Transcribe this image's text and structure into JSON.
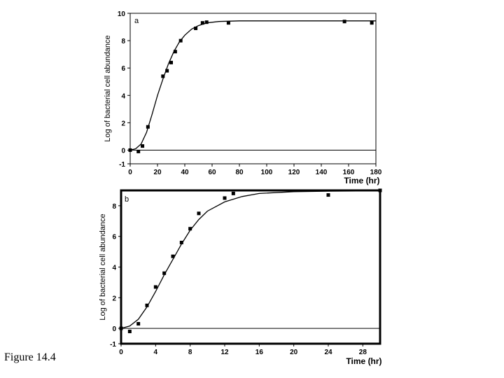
{
  "caption": "Figure 14.4",
  "chart_data": [
    {
      "type": "scatter",
      "panel_label": "a",
      "xlabel": "Time (hr)",
      "ylabel": "Log of bacterial cell abundance",
      "xlim": [
        0,
        180
      ],
      "ylim": [
        -1,
        10
      ],
      "xticks": [
        "0",
        "20",
        "40",
        "60",
        "80",
        "100",
        "120",
        "140",
        "160",
        "180"
      ],
      "yticks": [
        "-1",
        "0",
        "2",
        "4",
        "6",
        "8",
        "10"
      ],
      "series": [
        {
          "x": [
            0,
            6,
            9,
            13,
            24,
            27,
            30,
            33,
            37,
            48,
            53,
            56,
            72,
            157,
            177
          ],
          "y": [
            0.0,
            -0.1,
            0.3,
            1.7,
            5.4,
            5.8,
            6.4,
            7.2,
            8.0,
            8.9,
            9.3,
            9.35,
            9.3,
            9.4,
            9.3
          ]
        }
      ],
      "fit_curve": [
        [
          0,
          0
        ],
        [
          4,
          0.1
        ],
        [
          8,
          0.45
        ],
        [
          12,
          1.3
        ],
        [
          16,
          2.6
        ],
        [
          20,
          4.0
        ],
        [
          24,
          5.2
        ],
        [
          28,
          6.3
        ],
        [
          32,
          7.2
        ],
        [
          36,
          7.9
        ],
        [
          40,
          8.4
        ],
        [
          45,
          8.85
        ],
        [
          50,
          9.1
        ],
        [
          56,
          9.3
        ],
        [
          65,
          9.4
        ],
        [
          80,
          9.45
        ],
        [
          120,
          9.45
        ],
        [
          180,
          9.45
        ]
      ],
      "grid": false
    },
    {
      "type": "scatter",
      "panel_label": "b",
      "xlabel": "Time (hr)",
      "ylabel": "Log of bacterial cell abundance",
      "xlim": [
        0,
        30
      ],
      "ylim": [
        -1,
        9
      ],
      "xticks": [
        "0",
        "4",
        "8",
        "12",
        "16",
        "20",
        "24",
        "28"
      ],
      "yticks": [
        "-1",
        "0",
        "2",
        "4",
        "6",
        "8"
      ],
      "series": [
        {
          "x": [
            0,
            1,
            2,
            3,
            4,
            5,
            6,
            7,
            8,
            9,
            12,
            13,
            24,
            30
          ],
          "y": [
            0.0,
            -0.2,
            0.3,
            1.5,
            2.7,
            3.6,
            4.7,
            5.6,
            6.5,
            7.5,
            8.5,
            8.8,
            8.7,
            9.0
          ]
        }
      ],
      "fit_curve": [
        [
          0,
          0
        ],
        [
          1,
          0.15
        ],
        [
          2,
          0.6
        ],
        [
          3,
          1.4
        ],
        [
          4,
          2.4
        ],
        [
          5,
          3.5
        ],
        [
          6,
          4.5
        ],
        [
          7,
          5.5
        ],
        [
          8,
          6.4
        ],
        [
          9,
          7.1
        ],
        [
          10,
          7.65
        ],
        [
          12,
          8.25
        ],
        [
          14,
          8.6
        ],
        [
          16,
          8.8
        ],
        [
          20,
          8.92
        ],
        [
          24,
          8.95
        ],
        [
          30,
          8.97
        ]
      ],
      "grid": false
    }
  ]
}
